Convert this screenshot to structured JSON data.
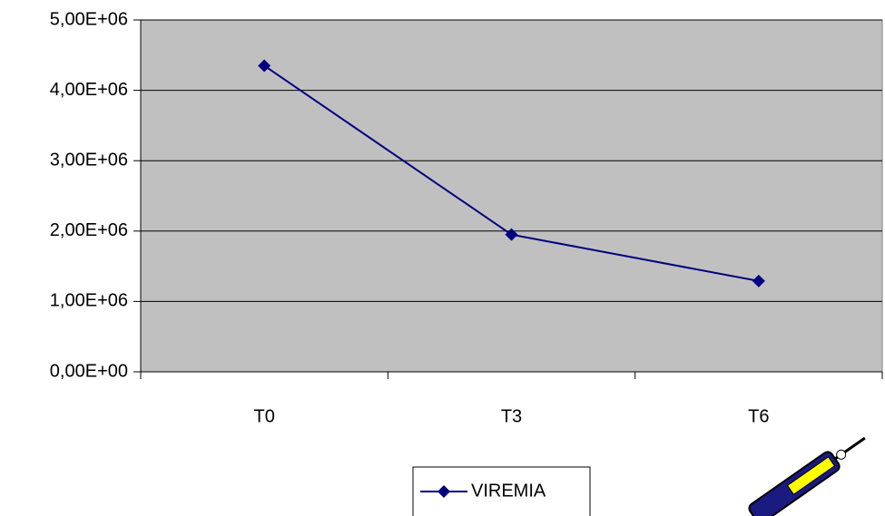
{
  "chart_data": {
    "type": "line",
    "categories": [
      "T0",
      "T3",
      "T6"
    ],
    "series": [
      {
        "name": "VIREMIA",
        "color": "#000080",
        "values": [
          4350000,
          1950000,
          1290000
        ]
      }
    ],
    "ylim": [
      0,
      5000000
    ],
    "yticks": [
      {
        "value": 0,
        "label": "0,00E+00"
      },
      {
        "value": 1000000,
        "label": "1,00E+06"
      },
      {
        "value": 2000000,
        "label": "2,00E+06"
      },
      {
        "value": 3000000,
        "label": "3,00E+06"
      },
      {
        "value": 4000000,
        "label": "4,00E+06"
      },
      {
        "value": 5000000,
        "label": "5,00E+06"
      }
    ],
    "grid": true,
    "legend": "bottom"
  }
}
